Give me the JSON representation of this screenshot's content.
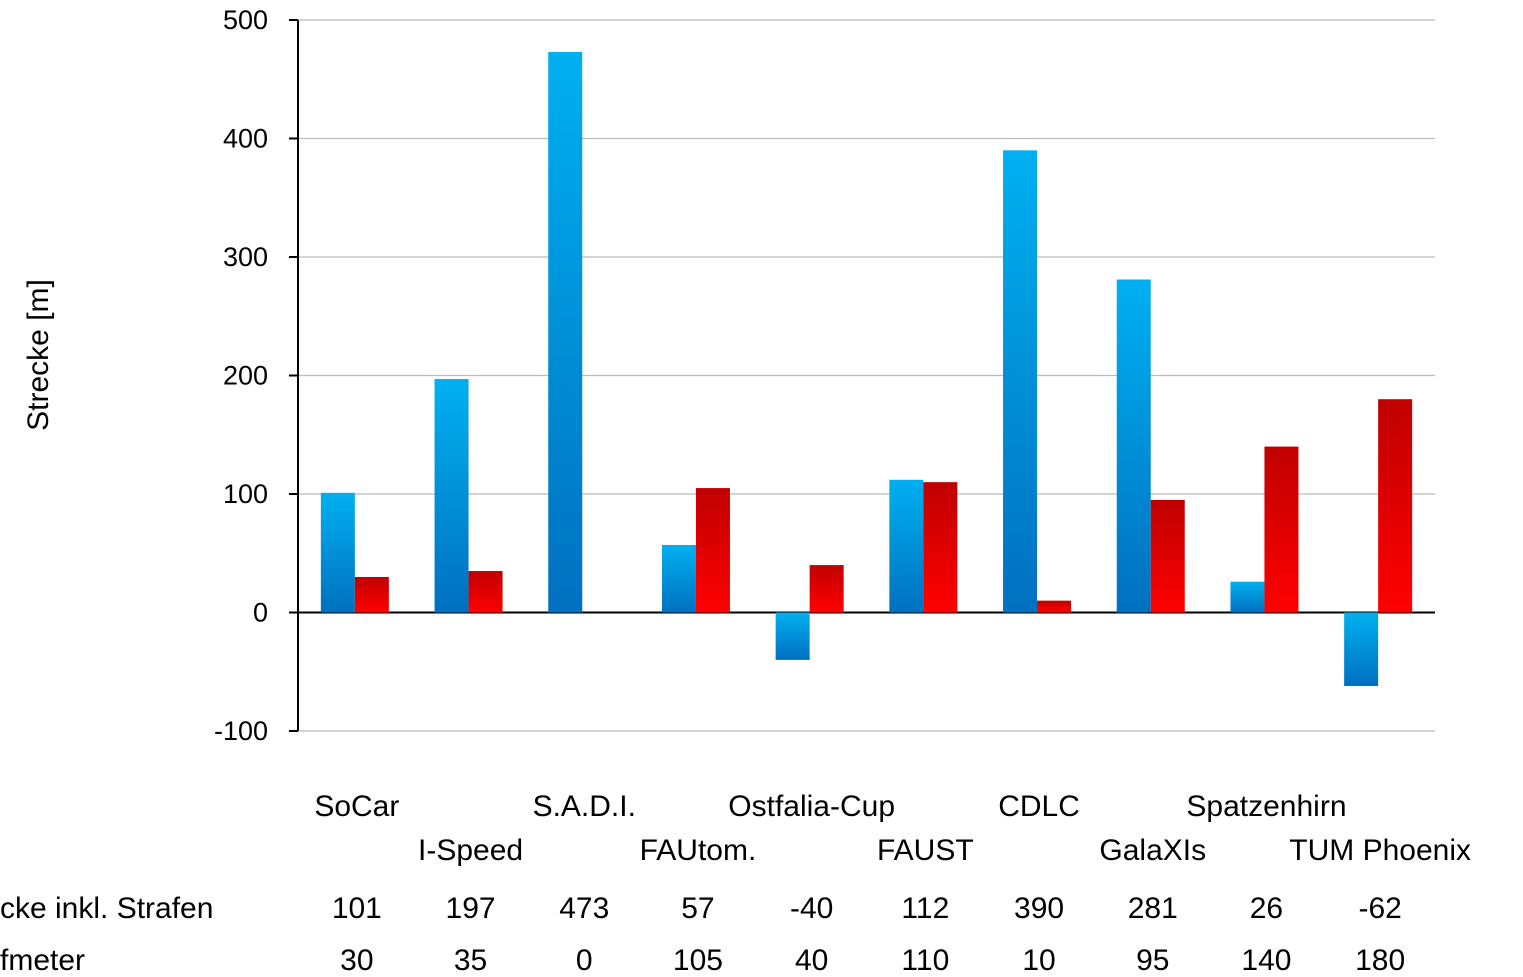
{
  "chart_data": {
    "type": "bar",
    "y_label": "Strecke [m]",
    "categories": [
      "SoCar",
      "I-Speed",
      "S.A.D.I.",
      "FAUtom.",
      "Ostfalia-Cup",
      "FAUST",
      "CDLC",
      "GalaXIs",
      "Spatzenhirn",
      "TUM Phoenix"
    ],
    "series": [
      {
        "name": "cke inkl. Strafen",
        "color": [
          "#00b0f0",
          "#0070c0"
        ],
        "values": [
          101,
          197,
          473,
          57,
          -40,
          112,
          390,
          281,
          26,
          -62
        ]
      },
      {
        "name": "fmeter",
        "color": [
          "#c00000",
          "#ff0000"
        ],
        "values": [
          30,
          35,
          0,
          105,
          40,
          110,
          10,
          95,
          140,
          180
        ]
      }
    ],
    "ylim": [
      -100,
      500
    ],
    "yticks": [
      -100,
      0,
      100,
      200,
      300,
      400,
      500
    ],
    "grid": true
  }
}
